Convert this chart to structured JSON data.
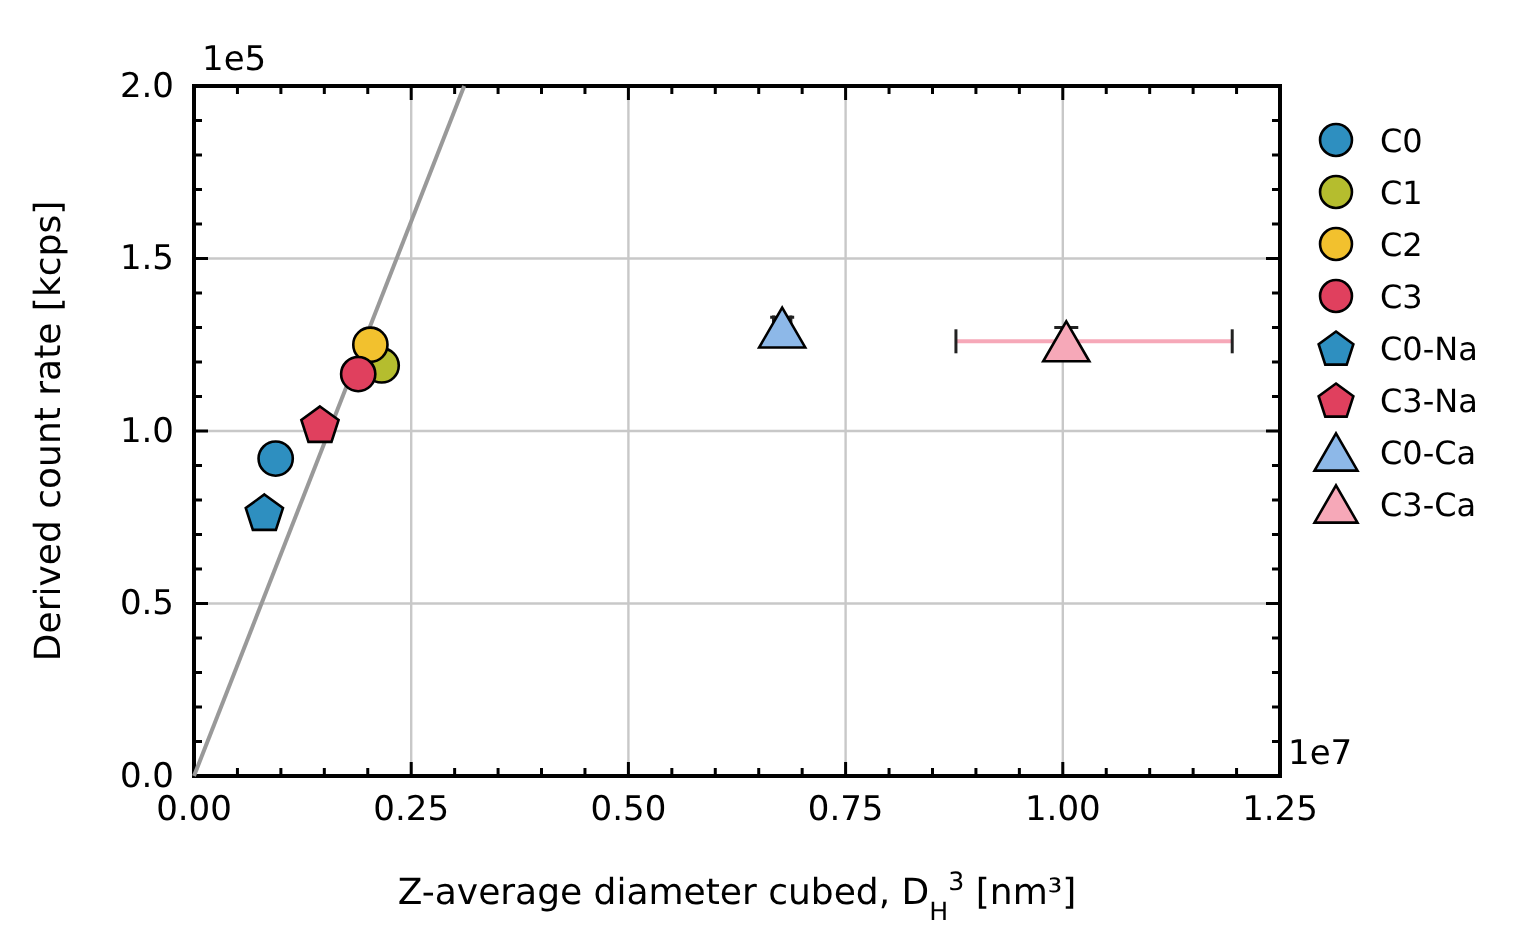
{
  "chart_data": {
    "type": "scatter",
    "xlabel": "Z-average diameter cubed, D$_{H}$$^{3}$ [nm³]",
    "ylabel": "Derived count rate [kcps]",
    "annotations": [
      "1e5",
      "1e7"
    ],
    "xlim": [
      0,
      1.25
    ],
    "ylim": [
      0,
      2.0
    ],
    "xticks": [
      {
        "value": 0,
        "label": "0.00"
      },
      0.25,
      {
        "value": 0.5,
        "label": "0.50"
      },
      0.75,
      {
        "value": 1,
        "label": "1.00"
      },
      1.25
    ],
    "yticks": [
      {
        "value": 0,
        "label": "0.0"
      },
      0.5,
      {
        "value": 1,
        "label": "1.0"
      },
      1.5,
      {
        "value": 2,
        "label": "2.0"
      }
    ],
    "grid": true,
    "legend": "right",
    "series": [
      {
        "type": "line",
        "color": "#999999",
        "x": [
          0,
          0.311
        ],
        "values": [
          0,
          2.0
        ],
        "line_style": "solid"
      },
      {
        "name": "C0",
        "color": "#2e8fc0",
        "marker": "circle",
        "x": [
          0.094
        ],
        "values": [
          0.92
        ],
        "errors": [
          0.03
        ],
        "xerrors": [
          0.01
        ]
      },
      {
        "name": "C1",
        "color": "#b5bd2e",
        "marker": "circle",
        "x": [
          0.216
        ],
        "values": [
          1.19
        ]
      },
      {
        "name": "C2",
        "color": "#f2c12e",
        "marker": "circle",
        "x": [
          0.203
        ],
        "values": [
          1.25
        ]
      },
      {
        "name": "C3",
        "color": "#e0405e",
        "marker": "circle",
        "x": [
          0.189
        ],
        "values": [
          1.165
        ]
      },
      {
        "name": "C0-Na",
        "color": "#2e8fc0",
        "x": [
          0.081
        ],
        "values": [
          0.765
        ]
      },
      {
        "name": "C3-Na",
        "color": "#e0405e",
        "x": [
          0.145
        ],
        "values": [
          1.02
        ]
      },
      {
        "name": "C0-Ca",
        "color": "#8db8e8",
        "marker": "triangle",
        "x": [
          0.677
        ],
        "values": [
          1.3
        ],
        "errors": [
          0.03
        ],
        "xerrors": [
          0.01
        ]
      },
      {
        "name": "C3-Ca",
        "color": "#f6a8b8",
        "marker": "triangle",
        "x": [
          1.004
        ],
        "values": [
          1.26
        ],
        "errors": [
          0.04
        ],
        "xerrors": [
          [
            0.877,
            1.195
          ]
        ]
      }
    ]
  }
}
